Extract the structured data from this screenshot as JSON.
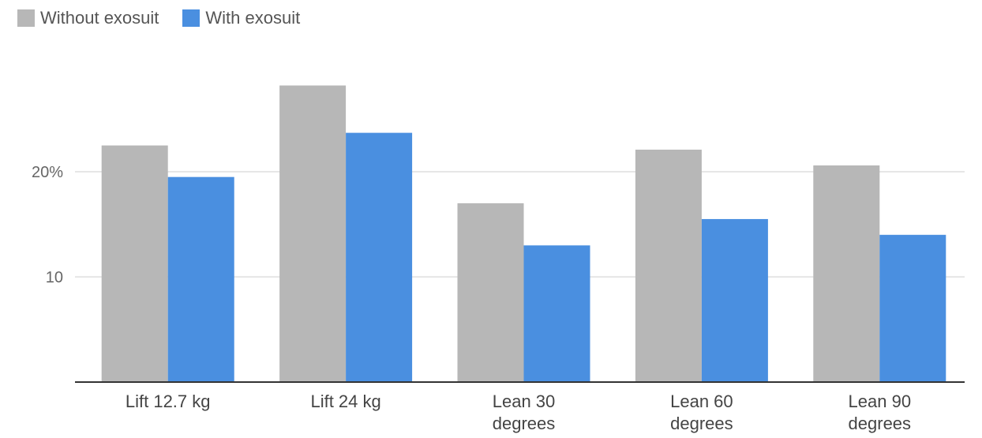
{
  "chart_data": {
    "type": "bar",
    "categories": [
      [
        "Lift 12.7 kg"
      ],
      [
        "Lift 24 kg"
      ],
      [
        "Lean 30",
        "degrees"
      ],
      [
        "Lean 60",
        "degrees"
      ],
      [
        "Lean 90",
        "degrees"
      ]
    ],
    "series": [
      {
        "name": "Without exosuit",
        "color": "#b7b7b7",
        "values": [
          22.5,
          28.2,
          17.0,
          22.1,
          20.6
        ]
      },
      {
        "name": "With exosuit",
        "color": "#4a8fe0",
        "values": [
          19.5,
          23.7,
          13.0,
          15.5,
          14.0
        ]
      }
    ],
    "y_ticks": [
      {
        "value": 10,
        "label": "10"
      },
      {
        "value": 20,
        "label": "20%"
      }
    ],
    "ylim": [
      0,
      30
    ],
    "grid": true,
    "legend_position": "top-left",
    "title": "",
    "xlabel": "",
    "ylabel": ""
  }
}
